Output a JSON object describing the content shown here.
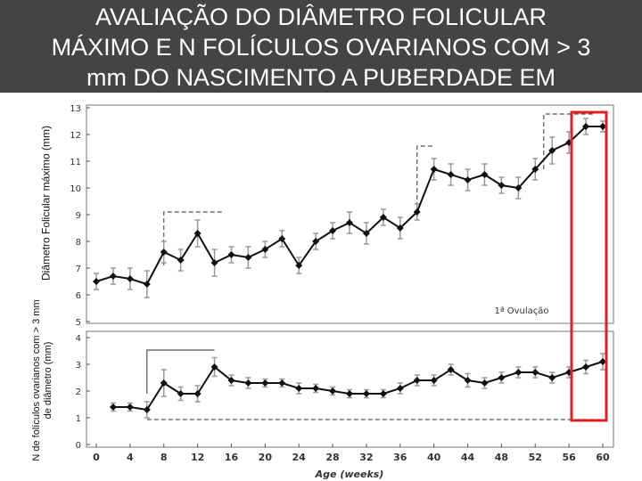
{
  "title": [
    "AVALIAÇÃO DO DIÂMETRO FOLICULAR",
    "MÁXIMO E N FOLÍCULOS OVARIANOS COM > 3",
    "mm DO NASCIMENTO A PUBERDADE EM"
  ],
  "colors": {
    "title_bg": "#444444",
    "title_text": "#ffffff",
    "series": "#111111",
    "error_bar": "#999999",
    "highlight": "#e02020"
  },
  "chart_data": [
    {
      "type": "line",
      "ylabel": "Diâmetro Folicular máximo (mm)",
      "xlabel": "Age (weeks)",
      "ylim": [
        5,
        13
      ],
      "yticks": [
        5,
        6,
        7,
        8,
        9,
        10,
        11,
        12,
        13
      ],
      "x": [
        0,
        2,
        4,
        6,
        8,
        10,
        12,
        14,
        16,
        18,
        20,
        22,
        24,
        26,
        28,
        30,
        32,
        34,
        36,
        38,
        40,
        42,
        44,
        46,
        48,
        50,
        52,
        54,
        56,
        58,
        60
      ],
      "values": [
        6.5,
        6.7,
        6.6,
        6.4,
        7.6,
        7.3,
        8.3,
        7.2,
        7.5,
        7.4,
        7.7,
        8.1,
        7.1,
        8.0,
        8.4,
        8.7,
        8.3,
        8.9,
        8.5,
        9.1,
        10.7,
        10.5,
        10.3,
        10.5,
        10.1,
        10.0,
        10.7,
        11.4,
        11.7,
        12.3,
        12.3
      ],
      "error": [
        0.3,
        0.3,
        0.4,
        0.5,
        0.4,
        0.4,
        0.5,
        0.5,
        0.3,
        0.4,
        0.3,
        0.3,
        0.3,
        0.3,
        0.3,
        0.4,
        0.4,
        0.3,
        0.4,
        0.3,
        0.4,
        0.4,
        0.4,
        0.4,
        0.3,
        0.4,
        0.4,
        0.5,
        0.4,
        0.3,
        0.2
      ],
      "annotations": [
        "1ª Ovulação"
      ]
    },
    {
      "type": "line",
      "ylabel": "N de folículos ovarianos com > 3 mm de diâmetro (mm)",
      "xlabel": "Age (weeks)",
      "ylim": [
        0,
        4
      ],
      "yticks": [
        0,
        1,
        2,
        3,
        4
      ],
      "xticks": [
        "0",
        "4",
        "8",
        "12",
        "16",
        "20",
        "24",
        "28",
        "32",
        "36",
        "40",
        "44",
        "48",
        "52",
        "56",
        "60"
      ],
      "x": [
        2,
        4,
        6,
        8,
        10,
        12,
        14,
        16,
        18,
        20,
        22,
        24,
        26,
        28,
        30,
        32,
        34,
        36,
        38,
        40,
        42,
        44,
        46,
        48,
        50,
        52,
        54,
        56,
        58,
        60
      ],
      "values": [
        1.4,
        1.4,
        1.3,
        2.3,
        1.9,
        1.9,
        2.9,
        2.4,
        2.3,
        2.3,
        2.3,
        2.1,
        2.1,
        2.0,
        1.9,
        1.9,
        1.9,
        2.1,
        2.4,
        2.4,
        2.8,
        2.4,
        2.3,
        2.5,
        2.7,
        2.7,
        2.5,
        2.7,
        2.9,
        3.1
      ],
      "error": [
        0.15,
        0.15,
        0.3,
        0.5,
        0.25,
        0.3,
        0.35,
        0.2,
        0.2,
        0.15,
        0.15,
        0.2,
        0.15,
        0.15,
        0.15,
        0.15,
        0.15,
        0.2,
        0.2,
        0.2,
        0.2,
        0.25,
        0.2,
        0.2,
        0.2,
        0.2,
        0.2,
        0.2,
        0.25,
        0.3
      ]
    }
  ]
}
